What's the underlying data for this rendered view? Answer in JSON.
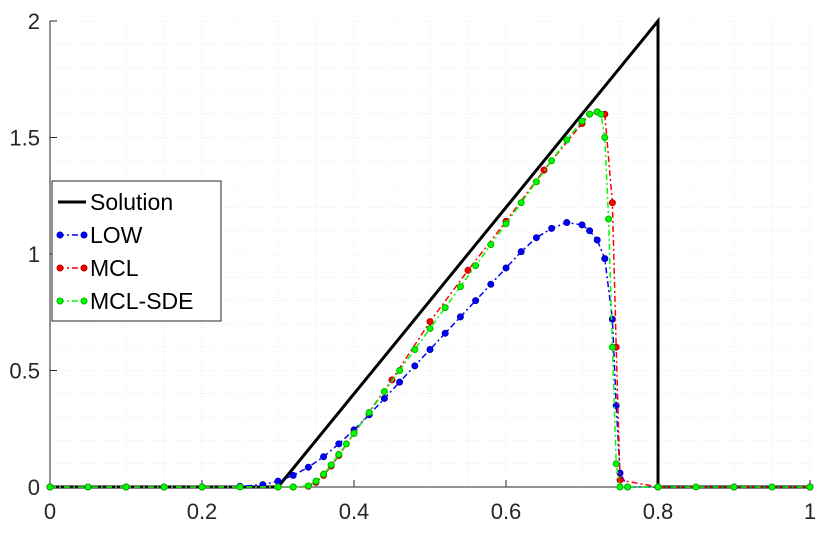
{
  "chart_data": {
    "type": "line",
    "title": "",
    "xlabel": "",
    "ylabel": "",
    "xlim": [
      0,
      1
    ],
    "ylim": [
      0,
      2
    ],
    "x_ticks": [
      "0",
      "0.2",
      "0.4",
      "0.6",
      "0.8",
      "1"
    ],
    "y_ticks": [
      "0",
      "0.5",
      "1",
      "1.5",
      "2"
    ],
    "grid": true,
    "legend_position": "left",
    "series": [
      {
        "name": "Solution",
        "color": "#000000",
        "style": "solid",
        "marker": "none",
        "x": [
          0,
          0.3,
          0.8,
          0.8,
          1
        ],
        "y": [
          0,
          0,
          2,
          0,
          0
        ]
      },
      {
        "name": "LOW",
        "color": "#0000ff",
        "style": "dash-dot",
        "marker": "circle",
        "x": [
          0,
          0.05,
          0.1,
          0.15,
          0.2,
          0.25,
          0.28,
          0.3,
          0.32,
          0.34,
          0.36,
          0.38,
          0.4,
          0.42,
          0.44,
          0.46,
          0.48,
          0.5,
          0.52,
          0.54,
          0.56,
          0.58,
          0.6,
          0.62,
          0.64,
          0.66,
          0.68,
          0.7,
          0.71,
          0.72,
          0.73,
          0.74,
          0.745,
          0.75,
          0.76,
          0.8,
          0.9,
          1
        ],
        "y": [
          0,
          0,
          0,
          0,
          0,
          0.003,
          0.01,
          0.025,
          0.05,
          0.085,
          0.13,
          0.185,
          0.245,
          0.31,
          0.38,
          0.45,
          0.52,
          0.59,
          0.66,
          0.73,
          0.8,
          0.87,
          0.94,
          1.01,
          1.07,
          1.11,
          1.135,
          1.125,
          1.1,
          1.06,
          0.98,
          0.72,
          0.35,
          0.06,
          0,
          0,
          0,
          0
        ]
      },
      {
        "name": "MCL",
        "color": "#ff0000",
        "style": "dash-dot",
        "marker": "circle",
        "x": [
          0,
          0.1,
          0.2,
          0.3,
          0.32,
          0.34,
          0.35,
          0.36,
          0.37,
          0.38,
          0.4,
          0.45,
          0.5,
          0.55,
          0.6,
          0.65,
          0.7,
          0.71,
          0.72,
          0.73,
          0.74,
          0.745,
          0.75,
          0.8,
          0.9,
          1
        ],
        "y": [
          0,
          0,
          0,
          0,
          0,
          0.003,
          0.02,
          0.05,
          0.09,
          0.135,
          0.23,
          0.46,
          0.71,
          0.93,
          1.14,
          1.36,
          1.56,
          1.6,
          1.61,
          1.6,
          1.22,
          0.6,
          0.03,
          0,
          0,
          0
        ]
      },
      {
        "name": "MCL-SDE",
        "color": "#00ff00",
        "style": "dash-dot",
        "marker": "circle",
        "x": [
          0,
          0.05,
          0.1,
          0.15,
          0.2,
          0.25,
          0.3,
          0.32,
          0.34,
          0.35,
          0.36,
          0.37,
          0.38,
          0.39,
          0.4,
          0.42,
          0.44,
          0.46,
          0.48,
          0.5,
          0.52,
          0.54,
          0.56,
          0.58,
          0.6,
          0.62,
          0.64,
          0.66,
          0.68,
          0.7,
          0.71,
          0.72,
          0.725,
          0.73,
          0.735,
          0.74,
          0.745,
          0.75,
          0.76,
          0.8,
          0.85,
          0.9,
          0.95,
          1
        ],
        "y": [
          0,
          0,
          0,
          0,
          0,
          0,
          0,
          0,
          0.005,
          0.025,
          0.055,
          0.095,
          0.14,
          0.185,
          0.23,
          0.32,
          0.41,
          0.5,
          0.59,
          0.68,
          0.77,
          0.86,
          0.95,
          1.04,
          1.13,
          1.22,
          1.31,
          1.4,
          1.49,
          1.57,
          1.6,
          1.61,
          1.6,
          1.5,
          1.15,
          0.6,
          0.1,
          0,
          0,
          0,
          0,
          0,
          0,
          0
        ]
      }
    ]
  }
}
